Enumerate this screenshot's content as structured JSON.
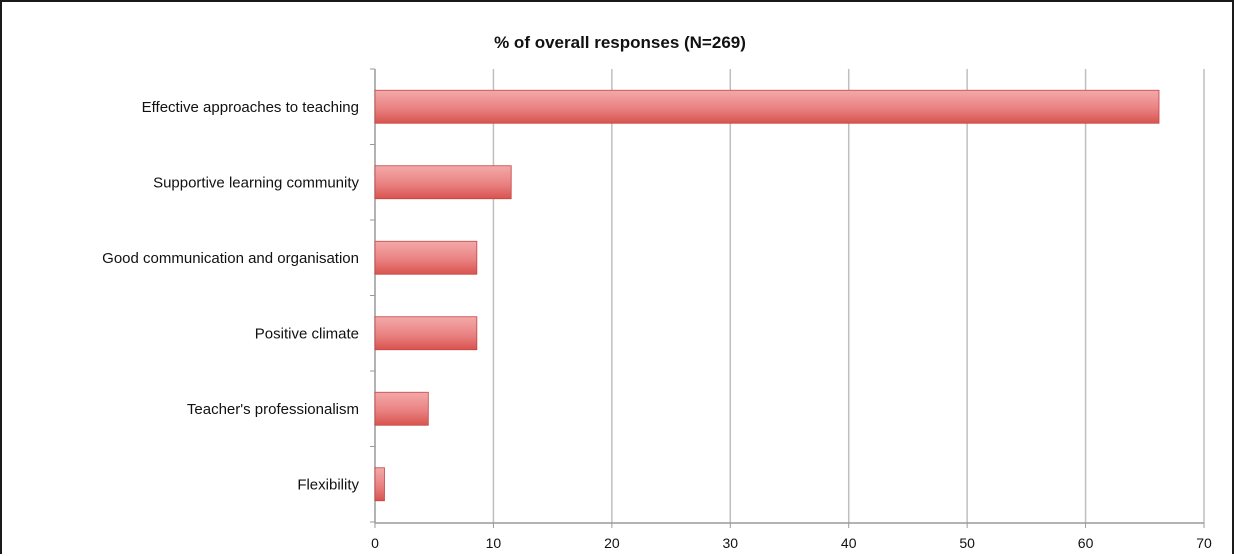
{
  "chart_data": {
    "type": "bar",
    "orientation": "horizontal",
    "title": "% of overall responses (N=269)",
    "xlabel": "",
    "ylabel": "",
    "categories": [
      "Effective approaches to teaching",
      "Supportive learning community",
      "Good communication and organisation",
      "Positive climate",
      "Teacher's professionalism",
      "Flexibility"
    ],
    "values": [
      66.2,
      11.5,
      8.6,
      8.6,
      4.5,
      0.8
    ],
    "xlim": [
      0,
      70
    ],
    "xticks": [
      0,
      10,
      20,
      30,
      40,
      50,
      60,
      70
    ],
    "grid": true,
    "legend": "none",
    "colors": {
      "bar_fill_top": "#f4a9a9",
      "bar_fill_bottom": "#d9534f",
      "bar_stroke": "#c24444",
      "gridline": "#bfbfbf",
      "axis": "#9a9a9a"
    }
  }
}
